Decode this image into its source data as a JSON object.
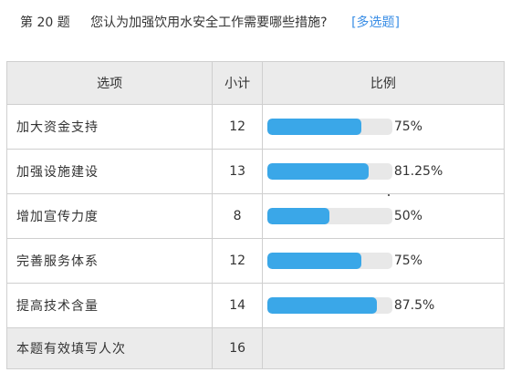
{
  "question": {
    "number": "第 20 题",
    "text": "您认为加强饮用水安全工作需要哪些措施?",
    "type": "[多选题]"
  },
  "table": {
    "headers": {
      "option": "选项",
      "count": "小计",
      "ratio": "比例"
    },
    "rows": [
      {
        "option": "加大资金支持",
        "count": "12",
        "percent_label": "75%",
        "percent": 75
      },
      {
        "option": "加强设施建设",
        "count": "13",
        "percent_label": "81.25%",
        "percent": 81.25
      },
      {
        "option": "增加宣传力度",
        "count": "8",
        "percent_label": "50%",
        "percent": 50
      },
      {
        "option": "完善服务体系",
        "count": "12",
        "percent_label": "75%",
        "percent": 75
      },
      {
        "option": "提高技术含量",
        "count": "14",
        "percent_label": "87.5%",
        "percent": 87.5
      }
    ],
    "total": {
      "label": "本题有效填写人次",
      "count": "16"
    }
  },
  "colors": {
    "bar_fill": "#3aa7e8",
    "bar_track": "#e8e8e8",
    "header_bg": "#ebebeb",
    "question_type": "#3a8ee6"
  }
}
